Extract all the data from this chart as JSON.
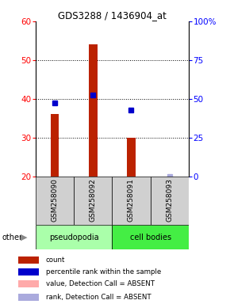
{
  "title": "GDS3288 / 1436904_at",
  "samples": [
    "GSM258090",
    "GSM258092",
    "GSM258091",
    "GSM258093"
  ],
  "bar_values": [
    36,
    54,
    30,
    null
  ],
  "dot_values": [
    39,
    41,
    37,
    null
  ],
  "dot_absent_values": [
    null,
    null,
    null,
    20
  ],
  "bar_absent": [
    false,
    false,
    false,
    true
  ],
  "groups": [
    {
      "label": "pseudopodia",
      "color": "#aaffaa",
      "span": [
        0,
        2
      ]
    },
    {
      "label": "cell bodies",
      "color": "#44ee44",
      "span": [
        2,
        4
      ]
    }
  ],
  "ylim_left": [
    20,
    60
  ],
  "ylim_right": [
    0,
    100
  ],
  "yticks_left": [
    20,
    30,
    40,
    50,
    60
  ],
  "yticks_right": [
    0,
    25,
    50,
    75,
    100
  ],
  "ytick_labels_right": [
    "0",
    "25",
    "50",
    "75",
    "100%"
  ],
  "bar_color": "#bb2200",
  "dot_color": "#0000cc",
  "dot_absent_color": "#aaaadd",
  "bar_absent_color": "#ffaaaa",
  "legend": [
    {
      "color": "#bb2200",
      "label": "count"
    },
    {
      "color": "#0000cc",
      "label": "percentile rank within the sample"
    },
    {
      "color": "#ffaaaa",
      "label": "value, Detection Call = ABSENT"
    },
    {
      "color": "#aaaadd",
      "label": "rank, Detection Call = ABSENT"
    }
  ]
}
